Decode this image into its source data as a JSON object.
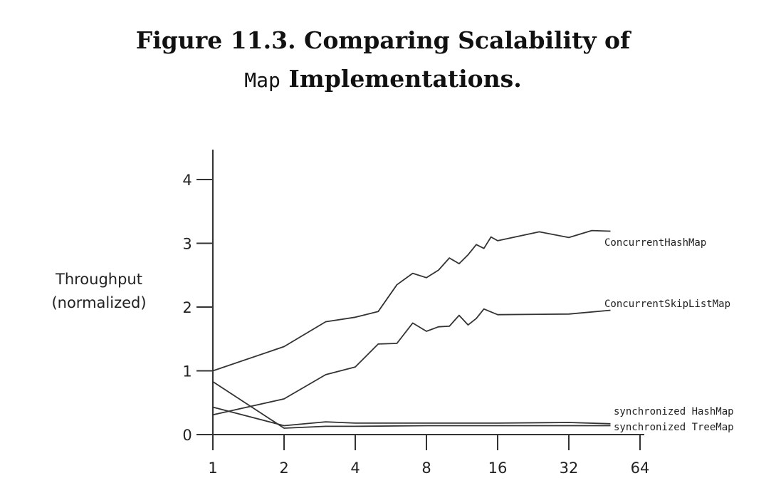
{
  "title": {
    "line1": "Figure 11.3. Comparing Scalability of",
    "line2_code": "Map",
    "line2_rest": " Implementations."
  },
  "chart_data": {
    "type": "line",
    "ylabel_line1": "Throughput",
    "ylabel_line2": "(normalized)",
    "xlabel": "",
    "x_scale": "log2",
    "x_ticks": [
      1,
      2,
      4,
      8,
      16,
      32,
      64
    ],
    "x_tick_labels": [
      "1",
      "2",
      "4",
      "8",
      "16",
      "32",
      "64"
    ],
    "y_ticks": [
      0,
      1,
      2,
      3,
      4
    ],
    "y_tick_labels": [
      "0",
      "1",
      "2",
      "3",
      "4"
    ],
    "ylim": [
      0,
      4
    ],
    "xlim": [
      1,
      64
    ],
    "grid": false,
    "legend": "inline labels at right end of each line",
    "series": [
      {
        "name": "ConcurrentHashMap",
        "points": [
          [
            1,
            1.0
          ],
          [
            2,
            1.38
          ],
          [
            3,
            1.77
          ],
          [
            4,
            1.84
          ],
          [
            5,
            1.93
          ],
          [
            6,
            2.35
          ],
          [
            7,
            2.53
          ],
          [
            8,
            2.46
          ],
          [
            9,
            2.58
          ],
          [
            10,
            2.77
          ],
          [
            11,
            2.68
          ],
          [
            12,
            2.82
          ],
          [
            13,
            2.98
          ],
          [
            14,
            2.92
          ],
          [
            15,
            3.1
          ],
          [
            16,
            3.04
          ],
          [
            24,
            3.18
          ],
          [
            32,
            3.09
          ],
          [
            40,
            3.2
          ],
          [
            48,
            3.19
          ]
        ]
      },
      {
        "name": "ConcurrentSkipListMap",
        "points": [
          [
            1,
            0.31
          ],
          [
            2,
            0.56
          ],
          [
            3,
            0.94
          ],
          [
            4,
            1.06
          ],
          [
            5,
            1.42
          ],
          [
            6,
            1.43
          ],
          [
            7,
            1.75
          ],
          [
            8,
            1.62
          ],
          [
            9,
            1.69
          ],
          [
            10,
            1.7
          ],
          [
            11,
            1.87
          ],
          [
            12,
            1.72
          ],
          [
            13,
            1.82
          ],
          [
            14,
            1.97
          ],
          [
            16,
            1.88
          ],
          [
            32,
            1.89
          ],
          [
            48,
            1.95
          ]
        ]
      },
      {
        "name": "synchronized HashMap",
        "points": [
          [
            1,
            0.43
          ],
          [
            2,
            0.14
          ],
          [
            3,
            0.2
          ],
          [
            4,
            0.18
          ],
          [
            8,
            0.18
          ],
          [
            16,
            0.18
          ],
          [
            32,
            0.19
          ],
          [
            48,
            0.17
          ]
        ]
      },
      {
        "name": "synchronized TreeMap",
        "points": [
          [
            1,
            0.83
          ],
          [
            2,
            0.1
          ],
          [
            3,
            0.13
          ],
          [
            4,
            0.13
          ],
          [
            8,
            0.14
          ],
          [
            16,
            0.14
          ],
          [
            32,
            0.14
          ],
          [
            48,
            0.14
          ]
        ]
      }
    ]
  }
}
